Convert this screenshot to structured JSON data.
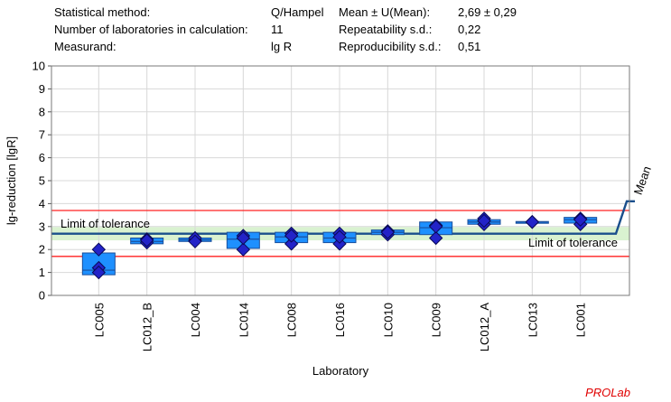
{
  "stats": {
    "method_label": "Statistical method:",
    "method_value": "Q/Hampel",
    "labs_label": "Number of laboratories in calculation:",
    "labs_value": "11",
    "measurand_label": "Measurand:",
    "measurand_value": "lg R",
    "mean_label": "Mean ± U(Mean):",
    "mean_value": "2,69 ± 0,29",
    "repeat_label": "Repeatability s.d.:",
    "repeat_value": "0,22",
    "repro_label": "Reproducibility s.d.:",
    "repro_value": "0,51"
  },
  "brand": "PROLab",
  "colors": {
    "box_fill": "#1e90ff",
    "box_stroke": "#1a4f9c",
    "diamond_fill": "#2323c8",
    "diamond_stroke": "#0a0a55",
    "mean_line": "#1a4f8c",
    "tolerance_line": "#ff2020",
    "tolerance_band": "#d9f2d0",
    "grid": "#d8d8d8"
  },
  "chart_data": {
    "type": "box",
    "xlabel": "Laboratory",
    "ylabel": "lg-reduction [lgR]",
    "ylim": [
      0,
      10
    ],
    "yticks": [
      "0",
      "1",
      "2",
      "3",
      "4",
      "5",
      "6",
      "7",
      "8",
      "9",
      "10"
    ],
    "grid": true,
    "mean": 2.69,
    "mean_uncertainty": 0.29,
    "mean_label": "Mean",
    "tolerance_upper": 3.7,
    "tolerance_lower": 1.7,
    "tolerance_label": "Limit of tolerance",
    "laboratories": [
      {
        "name": "LC005",
        "box_low": 0.9,
        "box_high": 1.85,
        "median": 1.1,
        "points": [
          2.0,
          1.2,
          1.0
        ]
      },
      {
        "name": "LC012_B",
        "box_low": 2.25,
        "box_high": 2.5,
        "median": 2.35,
        "points": [
          2.3,
          2.45,
          2.4
        ]
      },
      {
        "name": "LC004",
        "box_low": 2.35,
        "box_high": 2.5,
        "median": 2.42,
        "points": [
          2.4,
          2.5,
          2.35
        ]
      },
      {
        "name": "LC014",
        "box_low": 2.05,
        "box_high": 2.75,
        "median": 2.45,
        "points": [
          2.0,
          2.6,
          2.5
        ]
      },
      {
        "name": "LC008",
        "box_low": 2.3,
        "box_high": 2.75,
        "median": 2.55,
        "points": [
          2.25,
          2.7,
          2.6
        ]
      },
      {
        "name": "LC016",
        "box_low": 2.3,
        "box_high": 2.75,
        "median": 2.5,
        "points": [
          2.25,
          2.7,
          2.55
        ]
      },
      {
        "name": "LC010",
        "box_low": 2.65,
        "box_high": 2.85,
        "median": 2.75,
        "points": [
          2.65,
          2.8,
          2.75
        ]
      },
      {
        "name": "LC009",
        "box_low": 2.65,
        "box_high": 3.2,
        "median": 2.95,
        "points": [
          2.5,
          3.05,
          3.0
        ]
      },
      {
        "name": "LC012_A",
        "box_low": 3.1,
        "box_high": 3.3,
        "median": 3.2,
        "points": [
          3.1,
          3.35,
          3.25
        ]
      },
      {
        "name": "LC013",
        "box_low": 3.18,
        "box_high": 3.22,
        "median": 3.2,
        "points": [
          3.2,
          3.2,
          3.2
        ]
      },
      {
        "name": "LC001",
        "box_low": 3.15,
        "box_high": 3.4,
        "median": 3.3,
        "points": [
          3.1,
          3.35,
          3.3
        ]
      }
    ]
  }
}
